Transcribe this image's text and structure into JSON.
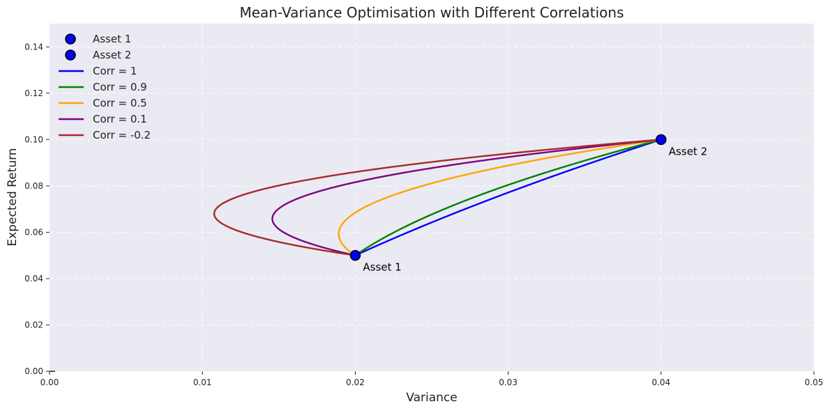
{
  "chart_data": {
    "type": "line",
    "title": "Mean-Variance Optimisation with Different Correlations",
    "xlabel": "Variance",
    "ylabel": "Expected Return",
    "xlim": [
      0,
      0.05
    ],
    "ylim": [
      0,
      0.15
    ],
    "xticks": [
      0.0,
      0.01,
      0.02,
      0.03,
      0.04,
      0.05
    ],
    "yticks": [
      0.0,
      0.02,
      0.04,
      0.06,
      0.08,
      0.1,
      0.12,
      0.14
    ],
    "grid": true,
    "legend_position": "top-left",
    "assets": [
      {
        "name": "Asset 1",
        "variance": 0.02,
        "return": 0.05,
        "color": "#0000ff"
      },
      {
        "name": "Asset 2",
        "variance": 0.04,
        "return": 0.1,
        "color": "#0000ff"
      }
    ],
    "series": [
      {
        "name": "Corr = 1",
        "correlation": 1.0,
        "color": "#0000ff"
      },
      {
        "name": "Corr = 0.9",
        "correlation": 0.9,
        "color": "#008000"
      },
      {
        "name": "Corr = 0.5",
        "correlation": 0.5,
        "color": "#ffa500"
      },
      {
        "name": "Corr = 0.1",
        "correlation": 0.1,
        "color": "#800080"
      },
      {
        "name": "Corr = -0.2",
        "correlation": -0.2,
        "color": "#a52a2a"
      }
    ],
    "annotations": [
      {
        "text": "Asset 1",
        "x": 0.02,
        "y": 0.05
      },
      {
        "text": "Asset 2",
        "x": 0.04,
        "y": 0.1
      }
    ]
  }
}
